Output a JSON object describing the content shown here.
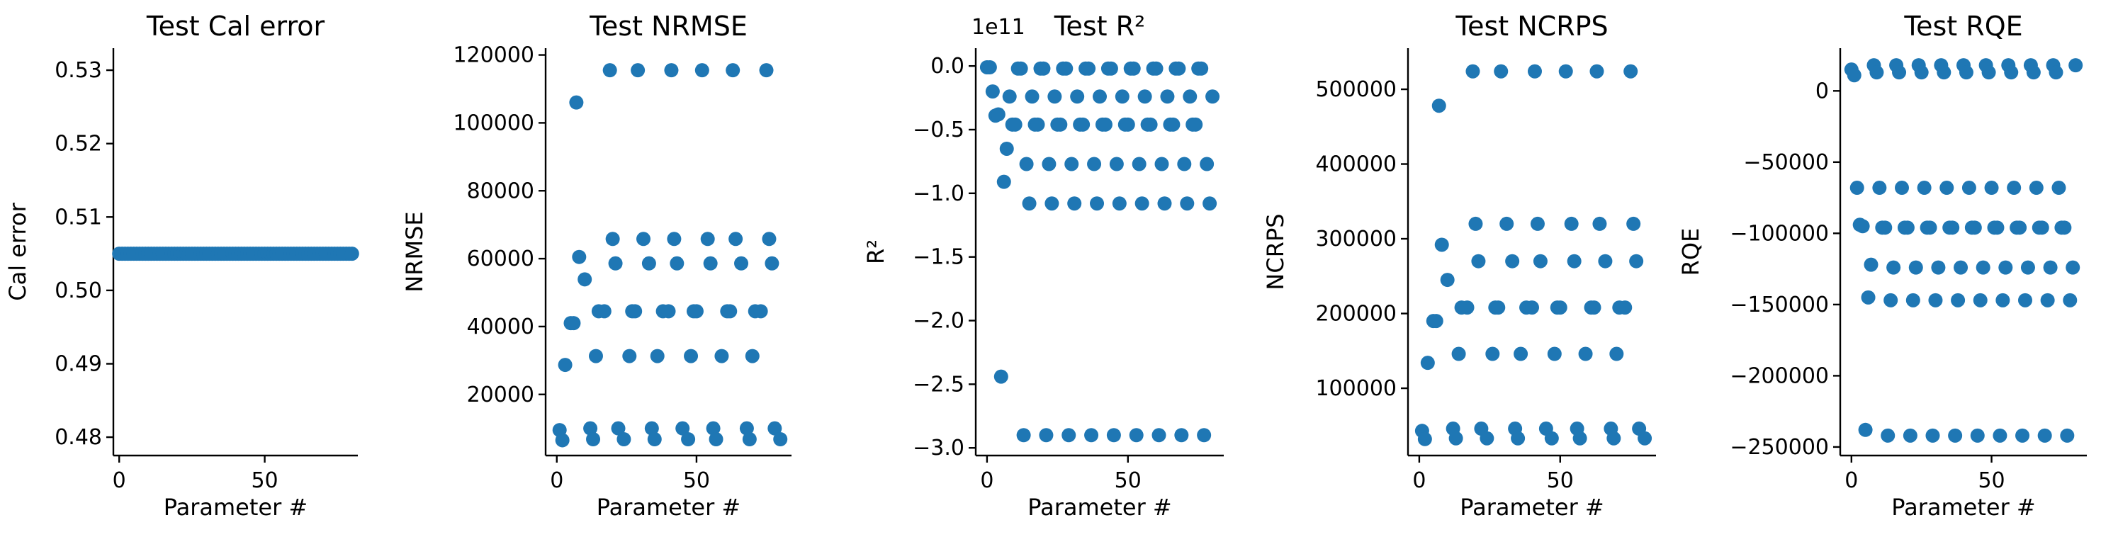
{
  "figure": {
    "marker_color": "#1f77b4"
  },
  "chart_data": [
    {
      "type": "scatter",
      "title": "Test Cal error",
      "xlabel": "Parameter #",
      "ylabel": "Cal error",
      "xlim": [
        -2,
        82
      ],
      "ylim": [
        0.4775,
        0.533
      ],
      "xticks": [
        0,
        50
      ],
      "xtick_labels": [
        "0",
        "50"
      ],
      "yticks": [
        0.48,
        0.49,
        0.5,
        0.51,
        0.52,
        0.53
      ],
      "ytick_labels": [
        "0.48",
        "0.49",
        "0.50",
        "0.51",
        "0.52",
        "0.53"
      ],
      "offset_text": "",
      "grid": false,
      "legend": "none",
      "series": [
        {
          "x": [
            0,
            1,
            2,
            3,
            4,
            5,
            6,
            7,
            8,
            9,
            10,
            11,
            12,
            13,
            14,
            15,
            16,
            17,
            18,
            19,
            20,
            21,
            22,
            23,
            24,
            25,
            26,
            27,
            28,
            29,
            30,
            31,
            32,
            33,
            34,
            35,
            36,
            37,
            38,
            39,
            40,
            41,
            42,
            43,
            44,
            45,
            46,
            47,
            48,
            49,
            50,
            51,
            52,
            53,
            54,
            55,
            56,
            57,
            58,
            59,
            60,
            61,
            62,
            63,
            64,
            65,
            66,
            67,
            68,
            69,
            70,
            71,
            72,
            73,
            74,
            75,
            76,
            77,
            78,
            79,
            80
          ],
          "y": [
            0.505,
            0.505,
            0.505,
            0.505,
            0.505,
            0.505,
            0.505,
            0.505,
            0.505,
            0.505,
            0.505,
            0.505,
            0.505,
            0.505,
            0.505,
            0.505,
            0.505,
            0.505,
            0.505,
            0.505,
            0.505,
            0.505,
            0.505,
            0.505,
            0.505,
            0.505,
            0.505,
            0.505,
            0.505,
            0.505,
            0.505,
            0.505,
            0.505,
            0.505,
            0.505,
            0.505,
            0.505,
            0.505,
            0.505,
            0.505,
            0.505,
            0.505,
            0.505,
            0.505,
            0.505,
            0.505,
            0.505,
            0.505,
            0.505,
            0.505,
            0.505,
            0.505,
            0.505,
            0.505,
            0.505,
            0.505,
            0.505,
            0.505,
            0.505,
            0.505,
            0.505,
            0.505,
            0.505,
            0.505,
            0.505,
            0.505,
            0.505,
            0.505,
            0.505,
            0.505,
            0.505,
            0.505,
            0.505,
            0.505,
            0.505,
            0.505,
            0.505,
            0.505,
            0.505,
            0.505,
            0.505
          ]
        }
      ]
    },
    {
      "type": "scatter",
      "title": "Test NRMSE",
      "xlabel": "Parameter #",
      "ylabel": "NRMSE",
      "xlim": [
        -4,
        84
      ],
      "ylim": [
        2000,
        122000
      ],
      "xticks": [
        0,
        50
      ],
      "xtick_labels": [
        "0",
        "50"
      ],
      "yticks": [
        20000,
        40000,
        60000,
        80000,
        100000,
        120000
      ],
      "ytick_labels": [
        "20000",
        "40000",
        "60000",
        "80000",
        "100000",
        "120000"
      ],
      "offset_text": "",
      "grid": false,
      "legend": "none",
      "series": [
        {
          "x": [
            1,
            2,
            3,
            5,
            6,
            7,
            8,
            10,
            12,
            13,
            14,
            15,
            17,
            19,
            20,
            21,
            22,
            24,
            26,
            27,
            28,
            29,
            31,
            33,
            34,
            35,
            36,
            38,
            40,
            41,
            42,
            43,
            45,
            47,
            48,
            49,
            50,
            52,
            54,
            55,
            56,
            57,
            59,
            61,
            62,
            63,
            64,
            66,
            68,
            69,
            70,
            71,
            73,
            75,
            76,
            77,
            78,
            80
          ],
          "y": [
            9500,
            6500,
            28700,
            41000,
            41000,
            106000,
            60500,
            53900,
            10000,
            6800,
            31300,
            44500,
            44500,
            115500,
            65800,
            58600,
            10000,
            6800,
            31300,
            44500,
            44500,
            115500,
            65800,
            58600,
            10000,
            6800,
            31300,
            44500,
            44500,
            115500,
            65800,
            58600,
            10000,
            6800,
            31300,
            44500,
            44500,
            115500,
            65800,
            58600,
            10000,
            6800,
            31300,
            44500,
            44500,
            115500,
            65800,
            58600,
            10000,
            6800,
            31300,
            44500,
            44500,
            115500,
            65800,
            58600,
            10000,
            6800
          ]
        }
      ]
    },
    {
      "type": "scatter",
      "title": "Test R²",
      "xlabel": "Parameter #",
      "ylabel": "R²",
      "xlim": [
        -4,
        84
      ],
      "ylim": [
        -3.06,
        0.14
      ],
      "xticks": [
        0,
        50
      ],
      "xtick_labels": [
        "0",
        "50"
      ],
      "yticks": [
        -3.0,
        -2.5,
        -2.0,
        -1.5,
        -1.0,
        -0.5,
        0.0
      ],
      "ytick_labels": [
        "−3.0",
        "−2.5",
        "−2.0",
        "−1.5",
        "−1.0",
        "−0.5",
        "0.0"
      ],
      "offset_text": "1e11",
      "grid": false,
      "legend": "none",
      "series": [
        {
          "x": [
            0,
            1,
            2,
            3,
            4,
            5,
            6,
            7,
            8,
            9,
            10,
            11,
            12,
            13,
            14,
            15,
            16,
            17,
            18,
            19,
            20,
            21,
            22,
            23,
            24,
            25,
            26,
            27,
            28,
            29,
            30,
            31,
            32,
            33,
            34,
            35,
            36,
            37,
            38,
            39,
            40,
            41,
            42,
            43,
            44,
            45,
            46,
            47,
            48,
            49,
            50,
            51,
            52,
            53,
            54,
            55,
            56,
            57,
            58,
            59,
            60,
            61,
            62,
            63,
            64,
            65,
            66,
            67,
            68,
            69,
            70,
            71,
            72,
            73,
            74,
            75,
            76,
            77,
            78,
            79,
            80
          ],
          "y": [
            -0.01,
            -0.01,
            -0.2,
            -0.39,
            -0.38,
            -2.44,
            -0.91,
            -0.65,
            -0.24,
            -0.46,
            -0.46,
            -0.02,
            -0.02,
            -2.9,
            -0.77,
            -1.08,
            -0.24,
            -0.46,
            -0.46,
            -0.02,
            -0.02,
            -2.9,
            -0.77,
            -1.08,
            -0.24,
            -0.46,
            -0.46,
            -0.02,
            -0.02,
            -2.9,
            -0.77,
            -1.08,
            -0.24,
            -0.46,
            -0.46,
            -0.02,
            -0.02,
            -2.9,
            -0.77,
            -1.08,
            -0.24,
            -0.46,
            -0.46,
            -0.02,
            -0.02,
            -2.9,
            -0.77,
            -1.08,
            -0.24,
            -0.46,
            -0.46,
            -0.02,
            -0.02,
            -2.9,
            -0.77,
            -1.08,
            -0.24,
            -0.46,
            -0.46,
            -0.02,
            -0.02,
            -2.9,
            -0.77,
            -1.08,
            -0.24,
            -0.46,
            -0.46,
            -0.02,
            -0.02,
            -2.9,
            -0.77,
            -1.08,
            -0.24,
            -0.46,
            -0.46,
            -0.02,
            -0.02,
            -2.9,
            -0.77,
            -1.08,
            -0.24
          ]
        }
      ]
    },
    {
      "type": "scatter",
      "title": "Test NCRPS",
      "xlabel": "Parameter #",
      "ylabel": "NCRPS",
      "xlim": [
        -4,
        84
      ],
      "ylim": [
        10000,
        555000
      ],
      "xticks": [
        0,
        50
      ],
      "xtick_labels": [
        "0",
        "50"
      ],
      "yticks": [
        100000,
        200000,
        300000,
        400000,
        500000
      ],
      "ytick_labels": [
        "100000",
        "200000",
        "300000",
        "400000",
        "500000"
      ],
      "offset_text": "",
      "grid": false,
      "legend": "none",
      "series": [
        {
          "x": [
            1,
            2,
            3,
            5,
            6,
            7,
            8,
            10,
            12,
            13,
            14,
            15,
            17,
            19,
            20,
            21,
            22,
            24,
            26,
            27,
            28,
            29,
            31,
            33,
            34,
            35,
            36,
            38,
            40,
            41,
            42,
            43,
            45,
            47,
            48,
            49,
            50,
            52,
            54,
            55,
            56,
            57,
            59,
            61,
            62,
            63,
            64,
            66,
            68,
            69,
            70,
            71,
            73,
            75,
            76,
            77,
            78,
            80
          ],
          "y": [
            43000,
            32000,
            134000,
            190000,
            190000,
            478000,
            292000,
            245000,
            46000,
            33000,
            146000,
            208000,
            208000,
            524000,
            320000,
            270000,
            46000,
            33000,
            146000,
            208000,
            208000,
            524000,
            320000,
            270000,
            46000,
            33000,
            146000,
            208000,
            208000,
            524000,
            320000,
            270000,
            46000,
            33000,
            146000,
            208000,
            208000,
            524000,
            320000,
            270000,
            46000,
            33000,
            146000,
            208000,
            208000,
            524000,
            320000,
            270000,
            46000,
            33000,
            146000,
            208000,
            208000,
            524000,
            320000,
            270000,
            46000,
            33000
          ]
        }
      ]
    },
    {
      "type": "scatter",
      "title": "Test RQE",
      "xlabel": "Parameter #",
      "ylabel": "RQE",
      "xlim": [
        -4,
        84
      ],
      "ylim": [
        -256000,
        30000
      ],
      "xticks": [
        0,
        50
      ],
      "xtick_labels": [
        "0",
        "50"
      ],
      "yticks": [
        -250000,
        -200000,
        -150000,
        -100000,
        -50000,
        0
      ],
      "ytick_labels": [
        "−250000",
        "−200000",
        "−150000",
        "−100000",
        "−50000",
        "0"
      ],
      "offset_text": "",
      "grid": false,
      "legend": "none",
      "series": [
        {
          "x": [
            0,
            1,
            2,
            3,
            4,
            5,
            6,
            7,
            8,
            9,
            10,
            11,
            12,
            13,
            14,
            15,
            16,
            17,
            18,
            19,
            20,
            21,
            22,
            23,
            24,
            25,
            26,
            27,
            28,
            29,
            30,
            31,
            32,
            33,
            34,
            35,
            36,
            37,
            38,
            39,
            40,
            41,
            42,
            43,
            44,
            45,
            46,
            47,
            48,
            49,
            50,
            51,
            52,
            53,
            54,
            55,
            56,
            57,
            58,
            59,
            60,
            61,
            62,
            63,
            64,
            65,
            66,
            67,
            68,
            69,
            70,
            71,
            72,
            73,
            74,
            75,
            76,
            77,
            78,
            79,
            80
          ],
          "y": [
            15000,
            11000,
            -68000,
            -94000,
            -95000,
            -238000,
            -145000,
            -122000,
            18000,
            13000,
            -68000,
            -96000,
            -96000,
            -242000,
            -147000,
            -124000,
            18000,
            13000,
            -68000,
            -96000,
            -96000,
            -242000,
            -147000,
            -124000,
            18000,
            13000,
            -68000,
            -96000,
            -96000,
            -242000,
            -147000,
            -124000,
            18000,
            13000,
            -68000,
            -96000,
            -96000,
            -242000,
            -147000,
            -124000,
            18000,
            13000,
            -68000,
            -96000,
            -96000,
            -242000,
            -147000,
            -124000,
            18000,
            13000,
            -68000,
            -96000,
            -96000,
            -242000,
            -147000,
            -124000,
            18000,
            13000,
            -68000,
            -96000,
            -96000,
            -242000,
            -147000,
            -124000,
            18000,
            13000,
            -68000,
            -96000,
            -96000,
            -242000,
            -147000,
            -124000,
            18000,
            13000,
            -68000,
            -96000,
            -96000,
            -242000,
            -147000,
            -124000,
            18000
          ]
        }
      ]
    }
  ]
}
